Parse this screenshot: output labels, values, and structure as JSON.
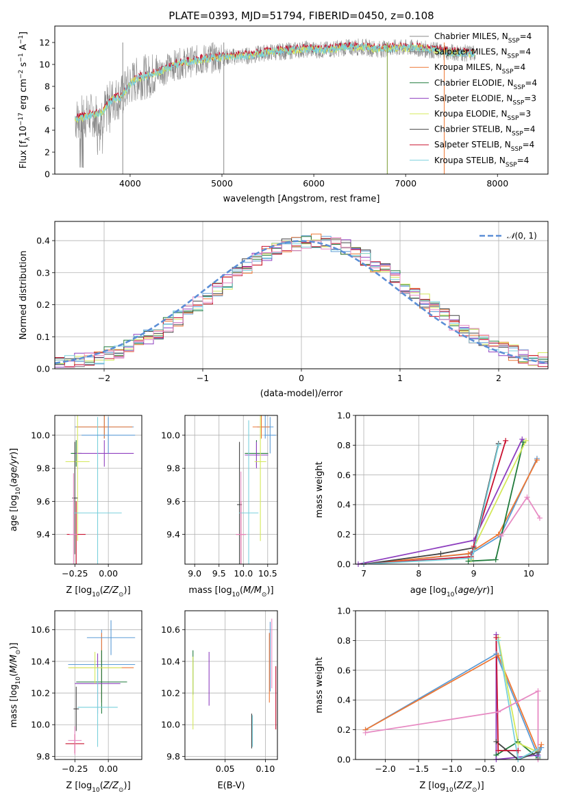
{
  "colors": [
    "#5b9bd5",
    "#ee7733",
    "#1f7a3a",
    "#8e3fbf",
    "#d4e85a",
    "#444444",
    "#c8102e",
    "#79d0dc",
    "#e78ac3"
  ],
  "series_names": [
    [
      "Chabrier MILES, N",
      "SSP",
      "=4"
    ],
    [
      "Salpeter MILES, N",
      "SSP",
      "=4"
    ],
    [
      "Kroupa MILES, N",
      "SSP",
      "=4"
    ],
    [
      "Chabrier ELODIE, N",
      "SSP",
      "=4"
    ],
    [
      "Salpeter ELODIE, N",
      "SSP",
      "=3"
    ],
    [
      "Kroupa ELODIE, N",
      "SSP",
      "=3"
    ],
    [
      "Chabrier STELIB, N",
      "SSP",
      "=4"
    ],
    [
      "Salpeter STELIB, N",
      "SSP",
      "=4"
    ],
    [
      "Kroupa STELIB, N",
      "SSP",
      "=4"
    ]
  ],
  "chart_data": [
    {
      "id": "spectrum",
      "type": "line",
      "title": "PLATE=0393, MJD=51794, FIBERID=0450, z=0.108",
      "xlabel": "wavelength [Angstrom, rest frame]",
      "ylabel": "Flux [fλ10⁻¹⁷ erg cm⁻² s⁻¹ A⁻¹]",
      "xlim": [
        3180,
        8550
      ],
      "ylim": [
        0,
        13.5
      ],
      "xticks": [
        4000,
        5000,
        6000,
        7000,
        8000
      ],
      "yticks": [
        0,
        2,
        4,
        6,
        8,
        10,
        12
      ],
      "grid": false,
      "legend": "top-right",
      "data": {
        "x": [
          3400,
          3550,
          3700,
          3800,
          3900,
          4000,
          4100,
          4200,
          4300,
          4400,
          4500,
          4700,
          4900,
          5100,
          5300,
          5500,
          5700,
          5900,
          6100,
          6300,
          6500,
          6700,
          6900,
          7100,
          7300,
          7500,
          7700
        ],
        "y": [
          5.0,
          5.3,
          5.6,
          6.8,
          7.0,
          8.2,
          8.8,
          8.9,
          9.3,
          9.6,
          10.0,
          10.3,
          10.6,
          10.7,
          10.8,
          11.1,
          11.2,
          11.4,
          11.3,
          11.5,
          11.6,
          11.4,
          11.5,
          11.5,
          11.3,
          11.1,
          11.0
        ]
      }
    },
    {
      "id": "residuals",
      "type": "step",
      "xlabel": "(data-model)/error",
      "ylabel": "Normed distribution",
      "xlim": [
        -2.5,
        2.5
      ],
      "ylim": [
        0,
        0.46
      ],
      "xticks": [
        -2,
        -1,
        0,
        1,
        2
      ],
      "yticks": [
        0.0,
        0.1,
        0.2,
        0.3,
        0.4
      ],
      "grid": true,
      "legend": "top-right",
      "legend_label": "𝒩(0,1)",
      "reference": {
        "mean": 0,
        "sigma": 1
      }
    },
    {
      "id": "age_vs_Z",
      "type": "errorbar",
      "xlabel": "Z [log10(Z/Z⊙)]",
      "ylabel": "age  [log10(age/yr)]",
      "xlim": [
        -0.4,
        0.25
      ],
      "ylim": [
        9.22,
        10.12
      ],
      "xticks": [
        -0.25,
        0.0
      ],
      "yticks": [
        9.4,
        9.6,
        9.8,
        10.0
      ],
      "grid": true,
      "points": [
        {
          "x": -0.03,
          "xerr": 0.22,
          "y": 10.05,
          "yerr": 0.07
        },
        {
          "x": -0.03,
          "xerr": 0.21,
          "y": 10.05,
          "yerr": 0.07
        },
        {
          "x": -0.24,
          "xerr": 0.04,
          "y": 9.89,
          "yerr": 0.08
        },
        {
          "x": -0.03,
          "xerr": 0.22,
          "y": 9.89,
          "yerr": 0.08
        },
        {
          "x": -0.23,
          "xerr": 0.09,
          "y": 9.84,
          "yerr": 0.48
        },
        {
          "x": -0.25,
          "xerr": 0.02,
          "y": 9.62,
          "yerr": 0.34
        },
        {
          "x": -0.24,
          "xerr": 0.07,
          "y": 9.4,
          "yerr": 0.2
        },
        {
          "x": -0.08,
          "xerr": 0.18,
          "y": 9.53,
          "yerr": 0.58
        },
        {
          "x": -0.26,
          "xerr": 0.03,
          "y": 9.4,
          "yerr": 0.37
        },
        {
          "x": 0.0,
          "xerr": 0.2,
          "y": 10.0,
          "yerr": 0.11
        }
      ]
    },
    {
      "id": "age_vs_mass",
      "type": "errorbar",
      "xlabel": "mass [log10(M/M⊙)]",
      "ylabel": "",
      "xlim": [
        8.8,
        10.7
      ],
      "ylim": [
        9.22,
        10.12
      ],
      "xticks": [
        9.0,
        9.5,
        10.0,
        10.5
      ],
      "yticks": [
        9.4,
        9.6,
        9.8,
        10.0
      ],
      "grid": true,
      "points": [
        {
          "x": 10.45,
          "xerr": 0.17,
          "y": 10.05,
          "yerr": 0.07
        },
        {
          "x": 10.37,
          "xerr": 0.18,
          "y": 10.05,
          "yerr": 0.07
        },
        {
          "x": 10.27,
          "xerr": 0.24,
          "y": 9.89,
          "yerr": 0.08
        },
        {
          "x": 10.27,
          "xerr": 0.24,
          "y": 9.88,
          "yerr": 0.08
        },
        {
          "x": 10.35,
          "xerr": 0.12,
          "y": 9.84,
          "yerr": 0.48
        },
        {
          "x": 9.92,
          "xerr": 0.05,
          "y": 9.58,
          "yerr": 0.38
        },
        {
          "x": 9.95,
          "xerr": 0.1,
          "y": 9.4,
          "yerr": 0.2
        },
        {
          "x": 10.11,
          "xerr": 0.2,
          "y": 9.53,
          "yerr": 0.56
        },
        {
          "x": 9.95,
          "xerr": 0.1,
          "y": 9.4,
          "yerr": 0.38
        },
        {
          "x": 10.55,
          "xerr": 0.12,
          "y": 10.0,
          "yerr": 0.11
        }
      ]
    },
    {
      "id": "mw_vs_age",
      "type": "line",
      "xlabel": "age  [log10(age/yr)]",
      "ylabel": "mass weight",
      "xlim": [
        6.85,
        10.35
      ],
      "ylim": [
        0,
        1.0
      ],
      "xticks": [
        7,
        8,
        9,
        10
      ],
      "yticks": [
        0.0,
        0.2,
        0.4,
        0.6,
        0.8,
        1.0
      ],
      "grid": true,
      "series": [
        {
          "x": [
            7.0,
            8.95,
            9.48,
            10.15
          ],
          "y": [
            0.0,
            0.07,
            0.19,
            0.71
          ]
        },
        {
          "x": [
            7.0,
            8.9,
            9.45,
            10.15
          ],
          "y": [
            0.0,
            0.07,
            0.2,
            0.7
          ]
        },
        {
          "x": [
            8.9,
            9.4,
            9.9
          ],
          "y": [
            0.02,
            0.03,
            0.82
          ]
        },
        {
          "x": [
            6.9,
            9.0,
            9.88
          ],
          "y": [
            0.0,
            0.16,
            0.84
          ]
        },
        {
          "x": [
            8.95,
            9.0,
            9.95
          ],
          "y": [
            0.03,
            0.11,
            0.83
          ]
        },
        {
          "x": [
            7.0,
            8.4,
            9.0,
            9.45
          ],
          "y": [
            0.0,
            0.07,
            0.11,
            0.81
          ]
        },
        {
          "x": [
            7.0,
            8.95,
            9.0,
            9.58
          ],
          "y": [
            0.0,
            0.05,
            0.12,
            0.83
          ]
        },
        {
          "x": [
            7.0,
            8.95,
            9.0,
            9.45
          ],
          "y": [
            0.0,
            0.04,
            0.09,
            0.8
          ]
        },
        {
          "x": [
            9.5,
            9.97,
            10.2
          ],
          "y": [
            0.19,
            0.45,
            0.31
          ]
        }
      ]
    },
    {
      "id": "mass_vs_Z",
      "type": "errorbar",
      "xlabel": "Z [log10(Z/Z⊙)]",
      "ylabel": "mass [log10(M/M⊙)]",
      "xlim": [
        -0.4,
        0.25
      ],
      "ylim": [
        9.78,
        10.72
      ],
      "xticks": [
        -0.25,
        0.0
      ],
      "yticks": [
        9.8,
        10.0,
        10.2,
        10.4,
        10.6
      ],
      "grid": true,
      "points": [
        {
          "x": -0.05,
          "xerr": 0.25,
          "y": 10.38,
          "yerr": 0.22
        },
        {
          "x": -0.05,
          "xerr": 0.24,
          "y": 10.36,
          "yerr": 0.22
        },
        {
          "x": -0.05,
          "xerr": 0.19,
          "y": 10.27,
          "yerr": 0.2
        },
        {
          "x": -0.08,
          "xerr": 0.17,
          "y": 10.26,
          "yerr": 0.19
        },
        {
          "x": -0.1,
          "xerr": 0.2,
          "y": 10.36,
          "yerr": 0.1
        },
        {
          "x": -0.24,
          "xerr": 0.02,
          "y": 10.1,
          "yerr": 0.14
        },
        {
          "x": -0.25,
          "xerr": 0.07,
          "y": 9.88,
          "yerr": 0.06
        },
        {
          "x": -0.08,
          "xerr": 0.15,
          "y": 10.11,
          "yerr": 0.25
        },
        {
          "x": -0.25,
          "xerr": 0.05,
          "y": 9.9,
          "yerr": 0.09
        },
        {
          "x": 0.02,
          "xerr": 0.18,
          "y": 10.55,
          "yerr": 0.11
        }
      ]
    },
    {
      "id": "mass_vs_ebv",
      "type": "errorbar",
      "xlabel": "E(B-V)",
      "ylabel": "",
      "xlim": [
        0.0,
        0.115
      ],
      "ylim": [
        9.78,
        10.72
      ],
      "xticks": [
        0.05,
        0.1
      ],
      "yticks": [
        9.8,
        10.0,
        10.2,
        10.4,
        10.6
      ],
      "grid": true,
      "points": [
        {
          "x": 0.106,
          "xerr": 0,
          "y": 10.43,
          "yerr": 0.22
        },
        {
          "x": 0.105,
          "xerr": 0,
          "y": 10.36,
          "yerr": 0.22
        },
        {
          "x": 0.01,
          "xerr": 0,
          "y": 10.33,
          "yerr": 0.14
        },
        {
          "x": 0.03,
          "xerr": 0,
          "y": 10.29,
          "yerr": 0.17
        },
        {
          "x": 0.01,
          "xerr": 0,
          "y": 10.2,
          "yerr": 0.23
        },
        {
          "x": 0.083,
          "xerr": 0,
          "y": 9.96,
          "yerr": 0.11
        },
        {
          "x": 0.113,
          "xerr": 0,
          "y": 10.17,
          "yerr": 0.2
        },
        {
          "x": 0.084,
          "xerr": 0,
          "y": 9.96,
          "yerr": 0.1
        },
        {
          "x": 0.108,
          "xerr": 0,
          "y": 10.45,
          "yerr": 0.22
        }
      ]
    },
    {
      "id": "mw_vs_Z",
      "type": "line",
      "xlabel": "Z [log10(Z/Z⊙)]",
      "ylabel": "mass weight",
      "xlim": [
        -2.45,
        0.45
      ],
      "ylim": [
        0,
        1.0
      ],
      "xticks": [
        -2.0,
        -1.5,
        -1.0,
        -0.5,
        0.0
      ],
      "yticks": [
        0.0,
        0.2,
        0.4,
        0.6,
        0.8,
        1.0
      ],
      "grid": true,
      "series": [
        {
          "x": [
            -2.3,
            -0.33,
            0.3,
            0.35
          ],
          "y": [
            0.2,
            0.71,
            0.02,
            0.08
          ]
        },
        {
          "x": [
            -2.3,
            -0.3,
            0.3,
            0.35
          ],
          "y": [
            0.2,
            0.7,
            0.05,
            0.1
          ]
        },
        {
          "x": [
            -0.33,
            0.0,
            0.3
          ],
          "y": [
            0.03,
            0.12,
            0.01
          ]
        },
        {
          "x": [
            -0.33,
            -0.33,
            0.3
          ],
          "y": [
            0.84,
            0.0,
            0.03
          ]
        },
        {
          "x": [
            -0.3,
            0.0,
            0.3
          ],
          "y": [
            0.82,
            0.11,
            0.05
          ]
        },
        {
          "x": [
            -0.33,
            0.0,
            0.3
          ],
          "y": [
            0.12,
            0.0,
            0.05
          ]
        },
        {
          "x": [
            -0.33,
            -0.3,
            0.0
          ],
          "y": [
            0.82,
            0.06,
            0.06
          ]
        },
        {
          "x": [
            -0.3,
            0.0,
            0.3
          ],
          "y": [
            0.8,
            0.0,
            0.07
          ]
        },
        {
          "x": [
            -2.3,
            -0.3,
            0.3,
            0.3
          ],
          "y": [
            0.18,
            0.32,
            0.46,
            0.0
          ]
        }
      ]
    }
  ]
}
